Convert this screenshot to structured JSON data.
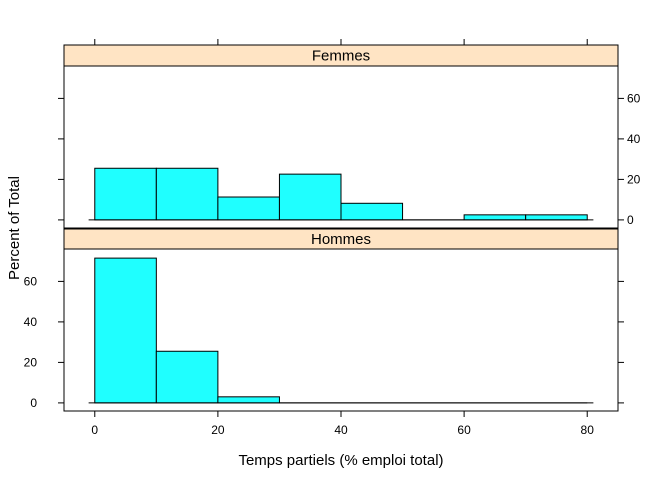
{
  "chart_data": {
    "type": "bar",
    "subtype": "histogram",
    "xlabel": "Temps partiels (% emploi total)",
    "ylabel": "Percent of Total",
    "xlim": [
      -5,
      85
    ],
    "ylim": [
      -4,
      76
    ],
    "x_ticks": [
      0,
      20,
      40,
      60,
      80
    ],
    "y_ticks": [
      0,
      20,
      40,
      60
    ],
    "bin_edges": [
      0,
      10,
      20,
      30,
      40,
      50,
      60,
      70,
      80
    ],
    "bar_fill": "#1fffff",
    "strip_fill": "#ffe4c4",
    "panels": [
      {
        "name": "Femmes",
        "values": [
          25.5,
          25.5,
          11.3,
          22.6,
          8.2,
          0,
          2.5,
          2.5
        ]
      },
      {
        "name": "Hommes",
        "values": [
          71.5,
          25.5,
          3.0,
          0,
          0,
          0,
          0,
          0
        ]
      }
    ]
  }
}
